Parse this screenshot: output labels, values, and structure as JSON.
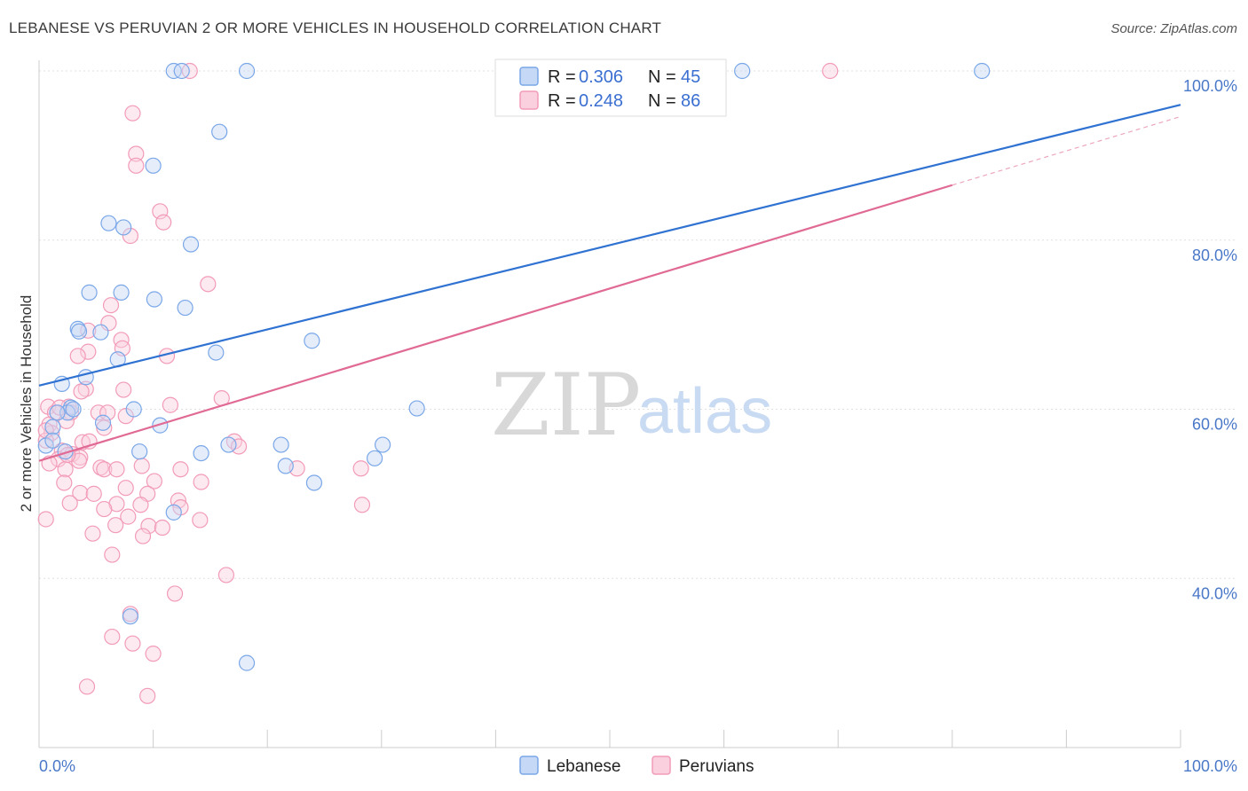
{
  "header": {
    "title": "LEBANESE VS PERUVIAN 2 OR MORE VEHICLES IN HOUSEHOLD CORRELATION CHART",
    "source": "Source: ZipAtlas.com"
  },
  "watermark": {
    "zip": "ZIP",
    "atlas": "atlas"
  },
  "legend": {
    "rows": [
      {
        "r_label": "R = ",
        "r_value": "0.306",
        "n_label": "N = ",
        "n_value": "45"
      },
      {
        "r_label": "R = ",
        "r_value": "0.248",
        "n_label": "N = ",
        "n_value": "86"
      }
    ]
  },
  "bottom_legend": {
    "series1": "Lebanese",
    "series2": "Peruvians"
  },
  "chart_data": {
    "type": "scatter",
    "title": "LEBANESE VS PERUVIAN 2 OR MORE VEHICLES IN HOUSEHOLD CORRELATION CHART",
    "xlabel": "",
    "ylabel": "2 or more Vehicles in Household",
    "xlim": [
      0,
      100
    ],
    "ylim": [
      20,
      100
    ],
    "x_tick_labels": [
      "0.0%",
      "100.0%"
    ],
    "y_ticks": [
      40,
      60,
      80,
      100
    ],
    "y_tick_labels": [
      "40.0%",
      "60.0%",
      "80.0%",
      "100.0%"
    ],
    "grid": true,
    "colors": {
      "lebanese": "#7aa7e8",
      "peruvians": "#f29bb8",
      "lebanese_line": "#2f72d1",
      "peruvians_line": "#e06a94",
      "tick": "#4a78c8"
    },
    "series": [
      {
        "name": "Lebanese",
        "points": [
          [
            11.8,
            100
          ],
          [
            12.5,
            100
          ],
          [
            18.2,
            100
          ],
          [
            61.6,
            100
          ],
          [
            82.6,
            100
          ],
          [
            15.8,
            92.8
          ],
          [
            10.0,
            88.8
          ],
          [
            6.1,
            82
          ],
          [
            7.4,
            81.5
          ],
          [
            13.3,
            79.5
          ],
          [
            4.4,
            73.8
          ],
          [
            7.2,
            73.8
          ],
          [
            10.1,
            73
          ],
          [
            5.4,
            69.1
          ],
          [
            12.8,
            72
          ],
          [
            3.4,
            69.5
          ],
          [
            3.5,
            69.2
          ],
          [
            23.9,
            68.1
          ],
          [
            15.5,
            66.7
          ],
          [
            6.9,
            65.9
          ],
          [
            4.1,
            63.8
          ],
          [
            2.0,
            63.0
          ],
          [
            2.8,
            60.2
          ],
          [
            2.5,
            59.6
          ],
          [
            8.3,
            60.0
          ],
          [
            33.1,
            60.1
          ],
          [
            1.2,
            57.9
          ],
          [
            5.6,
            58.4
          ],
          [
            10.6,
            58.1
          ],
          [
            0.6,
            55.7
          ],
          [
            1.2,
            56.3
          ],
          [
            2.3,
            55.0
          ],
          [
            8.8,
            55.0
          ],
          [
            14.2,
            54.8
          ],
          [
            16.6,
            55.8
          ],
          [
            21.2,
            55.8
          ],
          [
            30.1,
            55.8
          ],
          [
            21.6,
            53.3
          ],
          [
            29.4,
            54.2
          ],
          [
            24.1,
            51.3
          ],
          [
            11.8,
            47.8
          ],
          [
            1.6,
            59.6
          ],
          [
            8.0,
            35.5
          ],
          [
            18.2,
            30.0
          ],
          [
            3.0,
            60.0
          ]
        ],
        "trend": {
          "x": [
            0,
            100
          ],
          "y": [
            62.8,
            96.0
          ]
        }
      },
      {
        "name": "Peruvians",
        "points": [
          [
            13.2,
            100
          ],
          [
            69.3,
            100
          ],
          [
            8.2,
            95
          ],
          [
            8.5,
            90.2
          ],
          [
            8.5,
            88.8
          ],
          [
            10.6,
            83.4
          ],
          [
            10.9,
            82.1
          ],
          [
            8.0,
            80.5
          ],
          [
            14.8,
            74.8
          ],
          [
            6.3,
            72.3
          ],
          [
            6.1,
            70.2
          ],
          [
            4.3,
            69.3
          ],
          [
            7.2,
            68.2
          ],
          [
            7.3,
            67.2
          ],
          [
            4.3,
            66.8
          ],
          [
            3.4,
            66.3
          ],
          [
            11.2,
            66.3
          ],
          [
            7.4,
            62.3
          ],
          [
            4.1,
            62.4
          ],
          [
            3.7,
            62.1
          ],
          [
            16.0,
            61.3
          ],
          [
            11.5,
            60.5
          ],
          [
            0.8,
            60.3
          ],
          [
            2.6,
            60.3
          ],
          [
            1.4,
            59.6
          ],
          [
            2.8,
            59.6
          ],
          [
            5.2,
            59.6
          ],
          [
            6.0,
            59.6
          ],
          [
            7.6,
            59.2
          ],
          [
            2.4,
            58.6
          ],
          [
            0.9,
            58.2
          ],
          [
            5.7,
            57.8
          ],
          [
            1.1,
            57.2
          ],
          [
            0.6,
            56.3
          ],
          [
            3.8,
            56.1
          ],
          [
            17.1,
            56.2
          ],
          [
            17.5,
            55.6
          ],
          [
            2.0,
            55.1
          ],
          [
            2.9,
            54.7
          ],
          [
            3.6,
            54.3
          ],
          [
            1.7,
            54.1
          ],
          [
            3.5,
            53.9
          ],
          [
            0.9,
            53.6
          ],
          [
            9.0,
            53.3
          ],
          [
            5.4,
            53.1
          ],
          [
            5.7,
            52.9
          ],
          [
            12.4,
            52.9
          ],
          [
            22.6,
            53.0
          ],
          [
            28.2,
            53.0
          ],
          [
            2.3,
            52.9
          ],
          [
            10.1,
            51.5
          ],
          [
            14.2,
            51.4
          ],
          [
            7.6,
            50.7
          ],
          [
            3.6,
            50.1
          ],
          [
            4.8,
            50.0
          ],
          [
            9.5,
            50.0
          ],
          [
            12.2,
            49.2
          ],
          [
            2.7,
            48.9
          ],
          [
            6.8,
            48.8
          ],
          [
            28.3,
            48.7
          ],
          [
            12.4,
            48.4
          ],
          [
            5.7,
            48.2
          ],
          [
            7.8,
            47.3
          ],
          [
            14.1,
            46.9
          ],
          [
            0.6,
            47.0
          ],
          [
            6.7,
            46.3
          ],
          [
            9.6,
            46.2
          ],
          [
            4.7,
            45.3
          ],
          [
            9.1,
            45.0
          ],
          [
            6.4,
            42.8
          ],
          [
            16.4,
            40.4
          ],
          [
            11.9,
            38.2
          ],
          [
            8.0,
            35.8
          ],
          [
            6.4,
            33.1
          ],
          [
            8.2,
            32.3
          ],
          [
            10.0,
            31.1
          ],
          [
            4.2,
            27.2
          ],
          [
            9.5,
            26.1
          ],
          [
            0.6,
            57.5
          ],
          [
            1.8,
            60.2
          ],
          [
            2.5,
            54.6
          ],
          [
            4.4,
            56.2
          ],
          [
            6.8,
            52.9
          ],
          [
            8.9,
            48.7
          ],
          [
            10.8,
            46.0
          ],
          [
            2.2,
            51.3
          ]
        ],
        "trend": {
          "x": [
            0,
            80
          ],
          "y": [
            53.9,
            86.5
          ]
        },
        "trend_extension": {
          "x": [
            80,
            100
          ],
          "y": [
            86.5,
            94.6
          ]
        }
      }
    ]
  }
}
